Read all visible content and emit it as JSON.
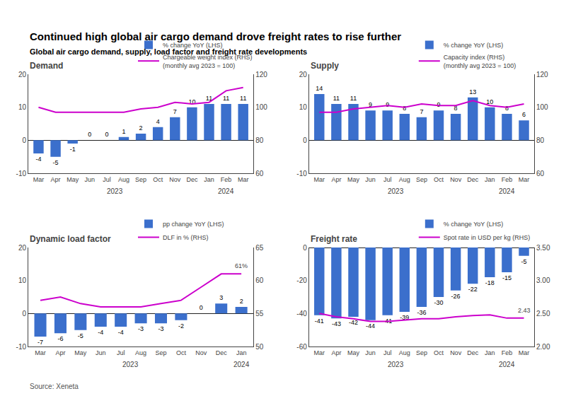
{
  "title": "Continued high global air cargo demand drove freight rates to rise further",
  "subtitle": "Global air cargo demand, supply, load factor and freight rate developments",
  "source": "Source: Xeneta",
  "chart_data": [
    {
      "type": "bar",
      "title": "Demand",
      "categories": [
        "Mar",
        "Apr",
        "May",
        "Jun",
        "Jul",
        "Aug",
        "Sep",
        "Oct",
        "Nov",
        "Dec",
        "Jan",
        "Feb",
        "Mar"
      ],
      "series": [
        {
          "name": "% change YoY (LHS)",
          "type": "bar",
          "color": "#3B6FCC",
          "data_labels": true,
          "values": [
            -4,
            -5,
            -1,
            0,
            0,
            1,
            2,
            4,
            7,
            10,
            11,
            11,
            11
          ]
        },
        {
          "name": "Chargeable weight index (RHS)\n(monthly avg 2023 = 100)",
          "type": "line",
          "color": "#CC00CC",
          "axis": "y2",
          "values": [
            100,
            97,
            97,
            97,
            97,
            97,
            99,
            100,
            103,
            102,
            103,
            110,
            112
          ]
        }
      ],
      "ylim": [
        -10,
        20
      ],
      "yticks": [
        -10,
        0,
        10,
        20
      ],
      "y2lim": [
        60,
        120
      ],
      "y2ticks": [
        60,
        80,
        100,
        120
      ],
      "grid": false,
      "legend": "top",
      "annotations": [
        {
          "text": "2023",
          "x": [
            0,
            9
          ]
        },
        {
          "text": "2024",
          "x": [
            10,
            12
          ]
        }
      ]
    },
    {
      "type": "bar",
      "title": "Supply",
      "categories": [
        "Mar",
        "Apr",
        "May",
        "Jun",
        "Jul",
        "Aug",
        "Sep",
        "Oct",
        "Nov",
        "Dec",
        "Jan",
        "Feb",
        "Mar"
      ],
      "series": [
        {
          "name": "% change YoY (LHS)",
          "type": "bar",
          "color": "#3B6FCC",
          "data_labels": true,
          "values": [
            14,
            11,
            11,
            9,
            9,
            8,
            7,
            9,
            8,
            13,
            10,
            8,
            6
          ]
        },
        {
          "name": "Capacity index (RHS)\n(monthly avg 2023 = 100)",
          "type": "line",
          "color": "#CC00CC",
          "axis": "y2",
          "values": [
            97,
            97,
            99,
            100,
            101,
            100,
            102,
            101,
            101,
            104,
            101,
            100,
            102
          ]
        }
      ],
      "ylim": [
        -10,
        20
      ],
      "yticks": [
        -10,
        0,
        10,
        20
      ],
      "y2lim": [
        60,
        120
      ],
      "y2ticks": [
        60,
        80,
        100,
        120
      ],
      "grid": false,
      "legend": "top",
      "annotations": [
        {
          "text": "2023",
          "x": [
            0,
            9
          ]
        },
        {
          "text": "2024",
          "x": [
            10,
            12
          ]
        }
      ]
    },
    {
      "type": "bar",
      "title": "Dynamic load factor",
      "categories": [
        "Mar",
        "Apr",
        "May",
        "Jun",
        "Jul",
        "Aug",
        "Sep",
        "Oct",
        "Nov",
        "Dec",
        "Jan"
      ],
      "series": [
        {
          "name": "pp change YoY (LHS)",
          "type": "bar",
          "color": "#3B6FCC",
          "data_labels": true,
          "values": [
            -7,
            -6,
            -5,
            -4,
            -4,
            -3,
            -3,
            -2,
            0,
            3,
            2
          ]
        },
        {
          "name": "DLF in % (RHS)",
          "type": "line",
          "color": "#CC00CC",
          "axis": "y2",
          "values": [
            57.0,
            57.5,
            56.5,
            56.0,
            56.0,
            56.0,
            56.5,
            57.0,
            59.0,
            61.0,
            61.0
          ]
        }
      ],
      "ylim": [
        -10,
        20
      ],
      "yticks": [
        -10,
        0,
        10,
        20
      ],
      "y2lim": [
        50,
        65
      ],
      "y2ticks": [
        50,
        55,
        60,
        65
      ],
      "grid": false,
      "legend": "top",
      "annotations": [
        {
          "text": "2023",
          "x": [
            0,
            9
          ]
        },
        {
          "text": "2024",
          "x": [
            10,
            10
          ]
        },
        {
          "text": "61%",
          "x": 10,
          "y": 61.0,
          "axis": "y2"
        }
      ]
    },
    {
      "type": "bar",
      "title": "Freight rate",
      "categories": [
        "Mar",
        "Apr",
        "May",
        "Jun",
        "Jul",
        "Aug",
        "Sep",
        "Oct",
        "Nov",
        "Dec",
        "Jan",
        "Feb",
        "Mar"
      ],
      "series": [
        {
          "name": "% change YoY (LHS)",
          "type": "bar",
          "color": "#3B6FCC",
          "data_labels": true,
          "values": [
            -41,
            -43,
            -42,
            -44,
            -41,
            -39,
            -36,
            -30,
            -26,
            -22,
            -18,
            -15,
            -5
          ]
        },
        {
          "name": "Spot rate in USD per kg (RHS)",
          "type": "line",
          "color": "#CC00CC",
          "axis": "y2",
          "values": [
            2.5,
            2.45,
            2.42,
            2.38,
            2.38,
            2.4,
            2.42,
            2.42,
            2.45,
            2.47,
            2.48,
            2.43,
            2.43
          ]
        }
      ],
      "ylim": [
        -60,
        0
      ],
      "yticks": [
        -60,
        -40,
        -20,
        0
      ],
      "y2lim": [
        2.0,
        3.5
      ],
      "y2ticks": [
        {
          "value": 2.0,
          "label": "2.00"
        },
        {
          "value": 2.5,
          "label": "2.50"
        },
        {
          "value": 3.0,
          "label": "3.00"
        },
        {
          "value": 3.5,
          "label": "3.50"
        }
      ],
      "grid": false,
      "legend": "top",
      "annotations": [
        {
          "text": "2023",
          "x": [
            0,
            9
          ]
        },
        {
          "text": "2024",
          "x": [
            10,
            12
          ]
        },
        {
          "text": "2.43",
          "x": 12,
          "y": 2.43,
          "axis": "y2"
        }
      ]
    }
  ]
}
